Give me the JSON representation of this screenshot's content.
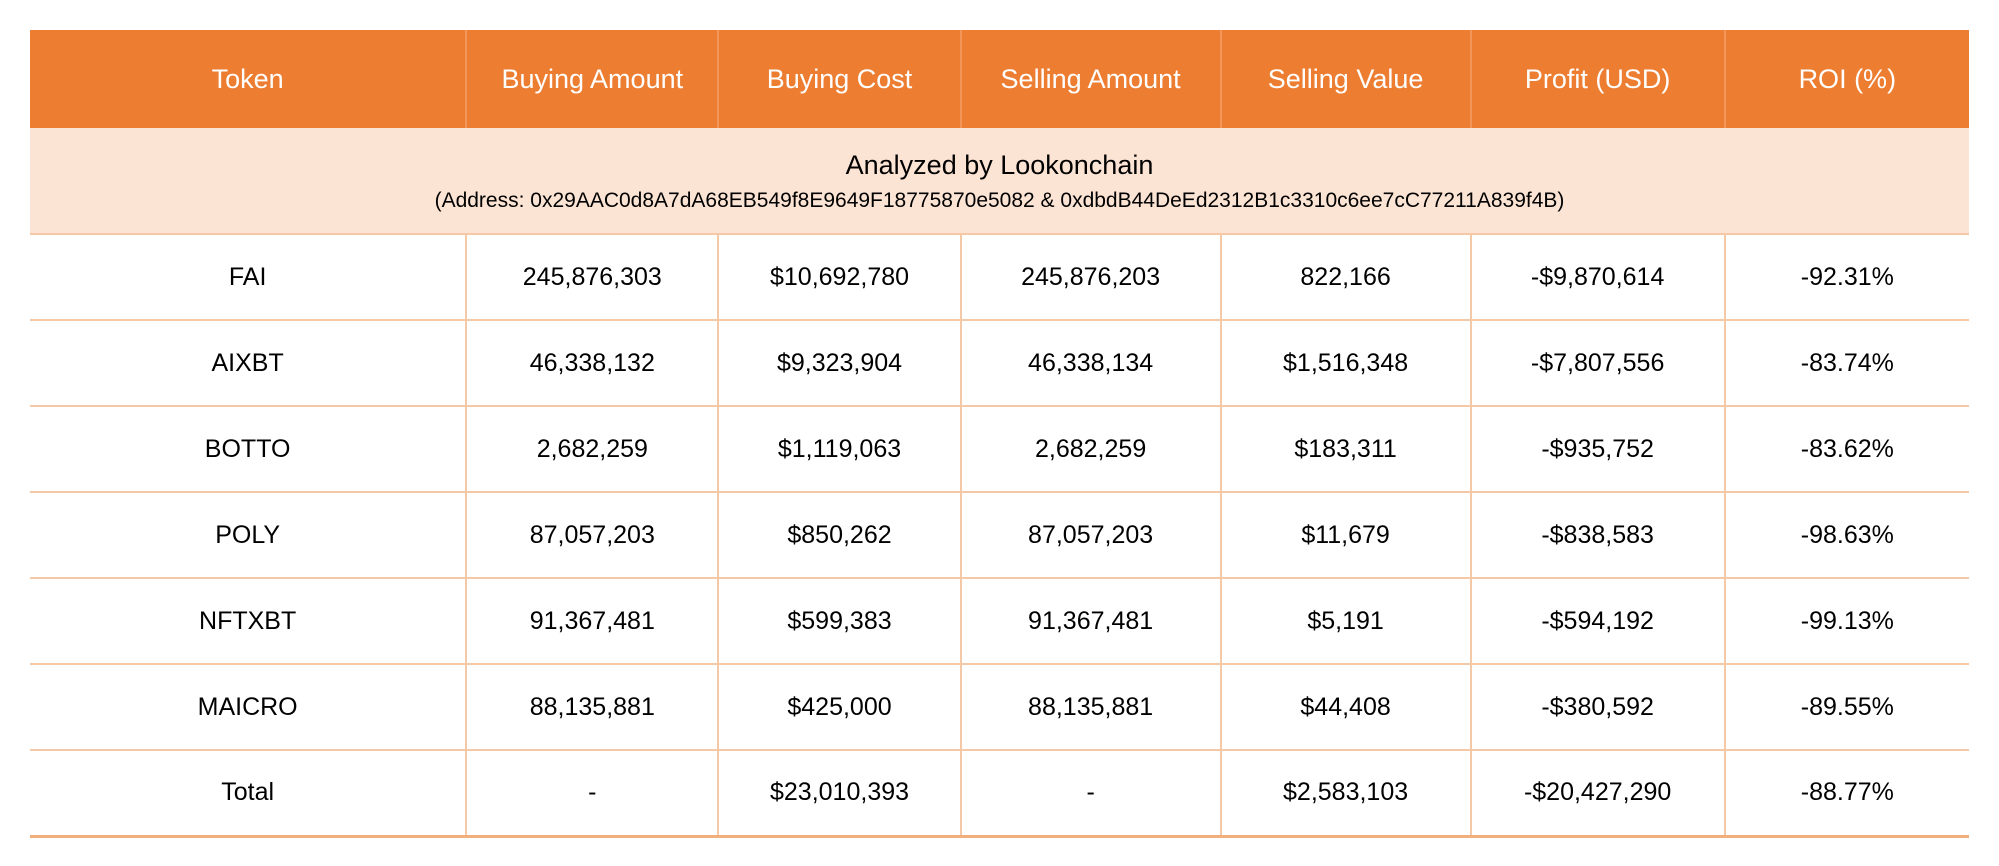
{
  "table": {
    "columns": {
      "token": "Token",
      "buying_amount": "Buying Amount",
      "buying_cost": "Buying Cost",
      "selling_amount": "Selling Amount",
      "selling_value": "Selling Value",
      "profit_usd": "Profit (USD)",
      "roi": "ROI (%)"
    },
    "banner": {
      "title": "Analyzed by Lookonchain",
      "subtitle": "(Address: 0x29AAC0d8A7dA68EB549f8E9649F18775870e5082 & 0xdbdB44DeEd2312B1c3310c6ee7cC77211A839f4B)"
    },
    "rows": [
      {
        "token": "FAI",
        "buying_amount": "245,876,303",
        "buying_cost": "$10,692,780",
        "selling_amount": "245,876,203",
        "selling_value": "822,166",
        "profit_usd": "-$9,870,614",
        "roi": "-92.31%"
      },
      {
        "token": "AIXBT",
        "buying_amount": "46,338,132",
        "buying_cost": "$9,323,904",
        "selling_amount": "46,338,134",
        "selling_value": "$1,516,348",
        "profit_usd": "-$7,807,556",
        "roi": "-83.74%"
      },
      {
        "token": "BOTTO",
        "buying_amount": "2,682,259",
        "buying_cost": "$1,119,063",
        "selling_amount": "2,682,259",
        "selling_value": "$183,311",
        "profit_usd": "-$935,752",
        "roi": "-83.62%"
      },
      {
        "token": "POLY",
        "buying_amount": "87,057,203",
        "buying_cost": "$850,262",
        "selling_amount": "87,057,203",
        "selling_value": "$11,679",
        "profit_usd": "-$838,583",
        "roi": "-98.63%"
      },
      {
        "token": "NFTXBT",
        "buying_amount": "91,367,481",
        "buying_cost": "$599,383",
        "selling_amount": "91,367,481",
        "selling_value": "$5,191",
        "profit_usd": "-$594,192",
        "roi": "-99.13%"
      },
      {
        "token": "MAICRO",
        "buying_amount": "88,135,881",
        "buying_cost": "$425,000",
        "selling_amount": "88,135,881",
        "selling_value": "$44,408",
        "profit_usd": "-$380,592",
        "roi": "-89.55%"
      },
      {
        "token": "Total",
        "buying_amount": "-",
        "buying_cost": "$23,010,393",
        "selling_amount": "-",
        "selling_value": "$2,583,103",
        "profit_usd": "-$20,427,290",
        "roi": "-88.77%"
      }
    ]
  },
  "colors": {
    "header_bg": "#ED7D31",
    "header_text": "#FFFFFF",
    "banner_bg": "#FCE4D4",
    "row_border": "#F6C9A6",
    "negative_text": "#FF0000",
    "body_text": "#000000",
    "page_bg": "#FFFFFF"
  },
  "chart_data": {
    "type": "table",
    "title": "Analyzed by Lookonchain",
    "subtitle": "(Address: 0x29AAC0d8A7dA68EB549f8E9649F18775870e5082 & 0xdbdB44DeEd2312B1c3310c6ee7cC77211A839f4B)",
    "columns": [
      "Token",
      "Buying Amount",
      "Buying Cost",
      "Selling Amount",
      "Selling Value",
      "Profit (USD)",
      "ROI (%)"
    ],
    "rows": [
      [
        "FAI",
        "245,876,303",
        "$10,692,780",
        "245,876,203",
        "822,166",
        "-$9,870,614",
        "-92.31%"
      ],
      [
        "AIXBT",
        "46,338,132",
        "$9,323,904",
        "46,338,134",
        "$1,516,348",
        "-$7,807,556",
        "-83.74%"
      ],
      [
        "BOTTO",
        "2,682,259",
        "$1,119,063",
        "2,682,259",
        "$183,311",
        "-$935,752",
        "-83.62%"
      ],
      [
        "POLY",
        "87,057,203",
        "$850,262",
        "87,057,203",
        "$11,679",
        "-$838,583",
        "-98.63%"
      ],
      [
        "NFTXBT",
        "91,367,481",
        "$599,383",
        "91,367,481",
        "$5,191",
        "-$594,192",
        "-99.13%"
      ],
      [
        "MAICRO",
        "88,135,881",
        "$425,000",
        "88,135,881",
        "$44,408",
        "-$380,592",
        "-89.55%"
      ],
      [
        "Total",
        "-",
        "$23,010,393",
        "-",
        "$2,583,103",
        "-$20,427,290",
        "-88.77%"
      ]
    ],
    "notes": "Negative Profit (USD) and ROI (%) values rendered in red; header row orange with white text; banner row light peach."
  }
}
